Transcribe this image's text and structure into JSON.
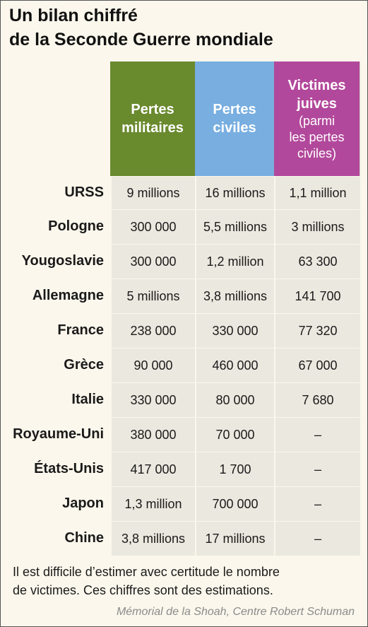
{
  "title": {
    "line1": "Un bilan chiffré",
    "line2": "de la Seconde Guerre mondiale"
  },
  "columns": {
    "military": {
      "line1": "Pertes",
      "line2": "militaires"
    },
    "civilian": {
      "line1": "Pertes",
      "line2": "civiles"
    },
    "jewish": {
      "line1": "Victimes",
      "line2": "juives",
      "sub1": "(parmi",
      "sub2": "les pertes",
      "sub3": "civiles)"
    }
  },
  "rows": [
    {
      "country": "URSS",
      "military": "9 millions",
      "civilian": "16 millions",
      "jewish": "1,1 million"
    },
    {
      "country": "Pologne",
      "military": "300 000",
      "civilian": "5,5 millions",
      "jewish": "3 millions"
    },
    {
      "country": "Yougoslavie",
      "military": "300 000",
      "civilian": "1,2 million",
      "jewish": "63 300"
    },
    {
      "country": "Allemagne",
      "military": "5 millions",
      "civilian": "3,8 millions",
      "jewish": "141 700"
    },
    {
      "country": "France",
      "military": "238 000",
      "civilian": "330 000",
      "jewish": "77 320"
    },
    {
      "country": "Grèce",
      "military": "90 000",
      "civilian": "460 000",
      "jewish": "67 000"
    },
    {
      "country": "Italie",
      "military": "330 000",
      "civilian": "80 000",
      "jewish": "7 680"
    },
    {
      "country": "Royaume-Uni",
      "military": "380 000",
      "civilian": "70 000",
      "jewish": "–"
    },
    {
      "country": "États-Unis",
      "military": "417 000",
      "civilian": "1 700",
      "jewish": "–"
    },
    {
      "country": "Japon",
      "military": "1,3 million",
      "civilian": "700 000",
      "jewish": "–"
    },
    {
      "country": "Chine",
      "military": "3,8 millions",
      "civilian": "17 millions",
      "jewish": "–"
    }
  ],
  "note": {
    "line1": "Il est difficile d’estimer avec certitude le nombre",
    "line2": "de victimes. Ces chiffres sont des estimations."
  },
  "source": "Mémorial de la Shoah, Centre Robert Schuman",
  "colors": {
    "military": "#6a8a2e",
    "civilian": "#78aee0",
    "jewish": "#b2489b",
    "cell": "#ebe8df",
    "background": "#fbf7ec"
  }
}
